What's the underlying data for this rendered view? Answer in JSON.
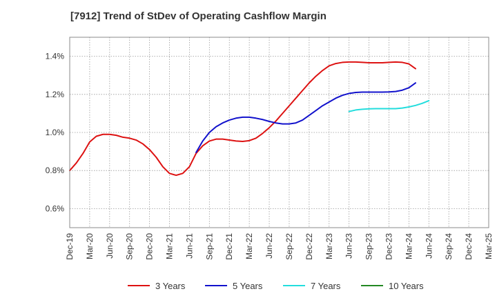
{
  "chart_data": {
    "type": "line",
    "title": "[7912]  Trend of StDev of Operating Cashflow Margin",
    "xlabel": "",
    "ylabel": "",
    "x_tick_labels": [
      "Dec-19",
      "Mar-20",
      "Jun-20",
      "Sep-20",
      "Dec-20",
      "Mar-21",
      "Jun-21",
      "Sep-21",
      "Dec-21",
      "Mar-22",
      "Jun-22",
      "Sep-22",
      "Dec-22",
      "Mar-23",
      "Jun-23",
      "Sep-23",
      "Dec-23",
      "Mar-24",
      "Jun-24",
      "Sep-24",
      "Dec-24",
      "Mar-25"
    ],
    "y_ticks": [
      0.6,
      0.8,
      1.0,
      1.2,
      1.4
    ],
    "y_tick_labels": [
      "0.6%",
      "0.8%",
      "1.0%",
      "1.2%",
      "1.4%"
    ],
    "ylim": [
      0.5,
      1.5
    ],
    "grid": true,
    "legend_position": "bottom",
    "series": [
      {
        "name": "3 Years",
        "color": "#dd1111",
        "start_index": 0,
        "values": [
          0.8,
          0.84,
          0.89,
          0.95,
          0.98,
          0.99,
          0.99,
          0.985,
          0.975,
          0.97,
          0.96,
          0.94,
          0.91,
          0.87,
          0.82,
          0.785,
          0.775,
          0.785,
          0.82,
          0.89,
          0.93,
          0.955,
          0.965,
          0.965,
          0.96,
          0.955,
          0.953,
          0.957,
          0.97,
          0.995,
          1.025,
          1.06,
          1.1,
          1.14,
          1.18,
          1.22,
          1.26,
          1.295,
          1.325,
          1.35,
          1.362,
          1.368,
          1.37,
          1.37,
          1.368,
          1.366,
          1.366,
          1.366,
          1.368,
          1.37,
          1.368,
          1.36,
          1.335
        ]
      },
      {
        "name": "5 Years",
        "color": "#1111cc",
        "start_index": 19,
        "values": [
          0.895,
          0.955,
          1.0,
          1.03,
          1.05,
          1.065,
          1.075,
          1.08,
          1.08,
          1.075,
          1.068,
          1.058,
          1.05,
          1.045,
          1.045,
          1.05,
          1.065,
          1.09,
          1.115,
          1.14,
          1.16,
          1.18,
          1.195,
          1.205,
          1.21,
          1.212,
          1.212,
          1.212,
          1.212,
          1.213,
          1.215,
          1.222,
          1.235,
          1.26
        ]
      },
      {
        "name": "7 Years",
        "color": "#22dddd",
        "start_index": 42,
        "values": [
          1.11,
          1.118,
          1.122,
          1.124,
          1.125,
          1.125,
          1.125,
          1.125,
          1.128,
          1.134,
          1.142,
          1.153,
          1.167
        ]
      },
      {
        "name": "10 Years",
        "color": "#228822",
        "start_index": 0,
        "values": []
      }
    ]
  }
}
